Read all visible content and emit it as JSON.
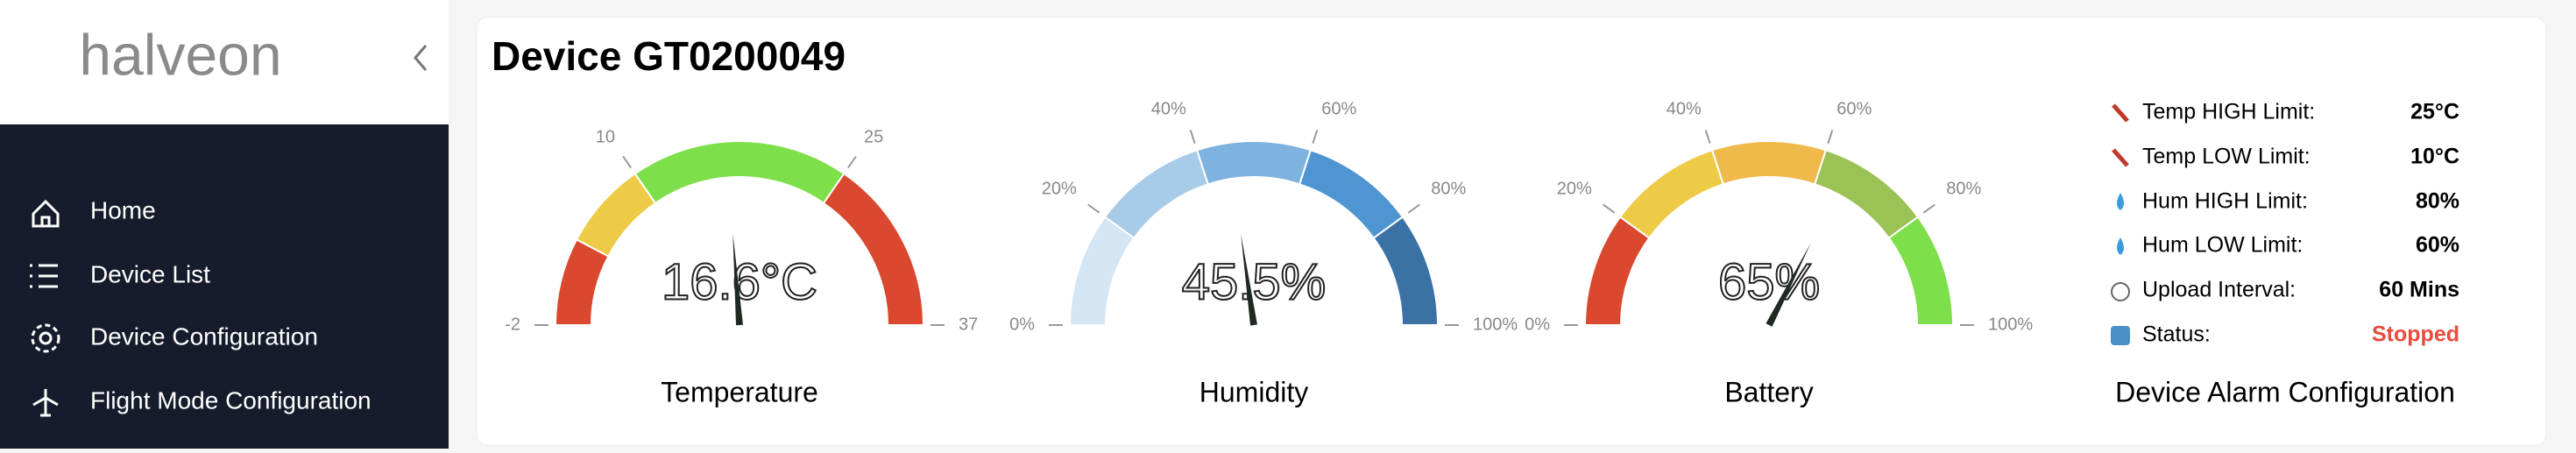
{
  "sidebar": {
    "logo": "halveon",
    "nav": [
      "Home",
      "Device List",
      "Device Configuration",
      "Flight Mode Configuration"
    ]
  },
  "header": {
    "title": "Device GT0200049"
  },
  "gauges": [
    {
      "label": "Temperature",
      "value": 16.6,
      "value_label": "16.6°C",
      "range": [
        -2,
        37
      ],
      "ticks": [
        -2,
        10,
        25,
        37
      ],
      "segments": [
        {
          "range": [
            -2,
            4
          ],
          "color": "#d9482f"
        },
        {
          "range": [
            4,
            10
          ],
          "color": "#eecb46"
        },
        {
          "range": [
            10,
            25
          ],
          "color": "#7ddf4a"
        },
        {
          "range": [
            25,
            37
          ],
          "color": "#d9482f"
        }
      ]
    },
    {
      "label": "Humidity",
      "value": 45.5,
      "value_label": "45.5%",
      "range": [
        0,
        100
      ],
      "ticks": [
        {
          "value": 0,
          "label": "0%"
        },
        {
          "value": 20,
          "label": "20%"
        },
        {
          "value": 40,
          "label": "40%"
        },
        {
          "value": 60,
          "label": "60%"
        },
        {
          "value": 80,
          "label": "80%"
        },
        {
          "value": 100,
          "label": "100%"
        }
      ],
      "segments": [
        {
          "range": [
            0,
            20
          ],
          "color": "#d4e6f4"
        },
        {
          "range": [
            20,
            40
          ],
          "color": "#a8cbe8"
        },
        {
          "range": [
            40,
            60
          ],
          "color": "#7eb3e0"
        },
        {
          "range": [
            60,
            80
          ],
          "color": "#4f95d2"
        },
        {
          "range": [
            80,
            100
          ],
          "color": "#3a72a5"
        }
      ]
    },
    {
      "label": "Battery",
      "value": 65,
      "value_label": "65%",
      "range": [
        0,
        100
      ],
      "ticks": [
        {
          "value": 0,
          "label": "0%"
        },
        {
          "value": 20,
          "label": "20%"
        },
        {
          "value": 40,
          "label": "40%"
        },
        {
          "value": 60,
          "label": "60%"
        },
        {
          "value": 80,
          "label": "80%"
        },
        {
          "value": 100,
          "label": "100%"
        }
      ],
      "segments": [
        {
          "range": [
            0,
            20
          ],
          "color": "#d9482f"
        },
        {
          "range": [
            20,
            40
          ],
          "color": "#eecb46"
        },
        {
          "range": [
            40,
            60
          ],
          "color": "#f0b94b"
        },
        {
          "range": [
            60,
            80
          ],
          "color": "#9bc255"
        },
        {
          "range": [
            80,
            100
          ],
          "color": "#7ddf4a"
        }
      ]
    }
  ],
  "alarm_config": {
    "title": "Device Alarm Configuration",
    "rows": [
      {
        "label": "Temp HIGH Limit:",
        "value": "25°C"
      },
      {
        "label": "Temp LOW Limit:",
        "value": "10°C"
      },
      {
        "label": "Hum HIGH Limit:",
        "value": "80%"
      },
      {
        "label": "Hum LOW Limit:",
        "value": "60%"
      },
      {
        "label": "Upload Interval:",
        "value": "60 Mins"
      },
      {
        "label": "Status:",
        "value": "Stopped"
      }
    ]
  }
}
